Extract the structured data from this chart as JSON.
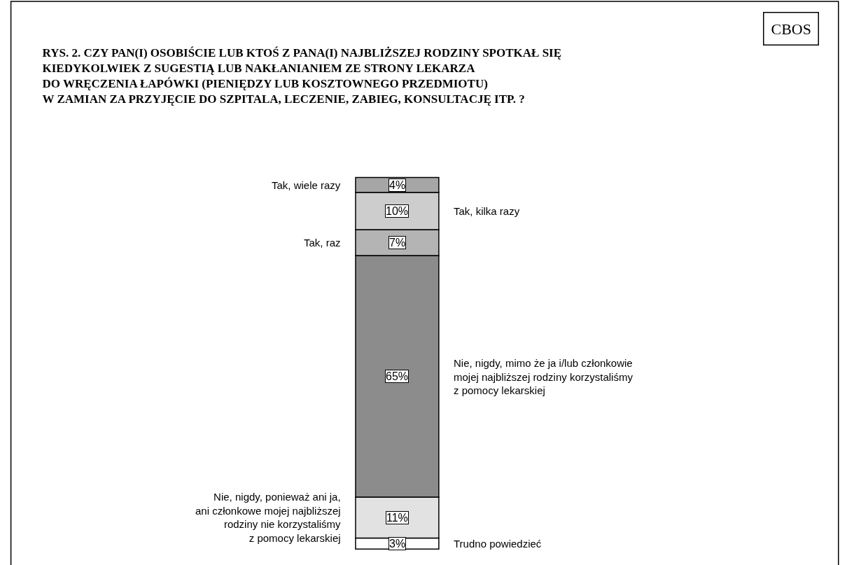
{
  "chart_data": {
    "type": "bar",
    "stacked": true,
    "title": "RYS. 2. CZY PAN(I) OSOBIŚCIE LUB KTOŚ Z PANA(I) NAJBLIŻSZEJ RODZINY SPOTKAŁ SIĘ\nKIEDYKOLWIEK Z SUGESTIĄ LUB NAKŁANIANIEM ZE STRONY LEKARZA\nDO WRĘCZENIA ŁAPÓWKI (PIENIĘDZY LUB KOSZTOWNEGO PRZEDMIOTU)\nW ZAMIAN ZA PRZYJĘCIE DO SZPITALA, LECZENIE, ZABIEG, KONSULTACJĘ ITP. ?",
    "annotations": [
      "CBOS"
    ],
    "categories": [
      null
    ],
    "series": [
      {
        "name": "Trudno powiedzieć",
        "color": "#ffffff",
        "values": [
          3
        ],
        "value_labels": [
          "3%"
        ]
      },
      {
        "name": "Nie, nigdy, ponieważ ani ja,\nani członkowe mojej najbliższej\nrodziny nie korzystaliśmy\nz pomocy lekarskiej",
        "color": "#e2e2e2",
        "values": [
          11
        ],
        "value_labels": [
          "11%"
        ]
      },
      {
        "name": "Nie, nigdy, mimo że ja i/lub członkowie\nmojej najbliższej rodziny korzystaliśmy\nz pomocy lekarskiej",
        "color": "#8c8c8c",
        "values": [
          65
        ],
        "value_labels": [
          "65%"
        ]
      },
      {
        "name": "Tak, raz",
        "color": "#b4b4b4",
        "values": [
          7
        ],
        "value_labels": [
          "7%"
        ]
      },
      {
        "name": "Tak, kilka razy",
        "color": "#cdcdcd",
        "values": [
          10
        ],
        "value_labels": [
          "10%"
        ]
      },
      {
        "name": "Tak, wiele razy",
        "color": "#a6a6a6",
        "values": [
          4
        ],
        "value_labels": [
          "4%"
        ]
      }
    ],
    "legend": false
  }
}
